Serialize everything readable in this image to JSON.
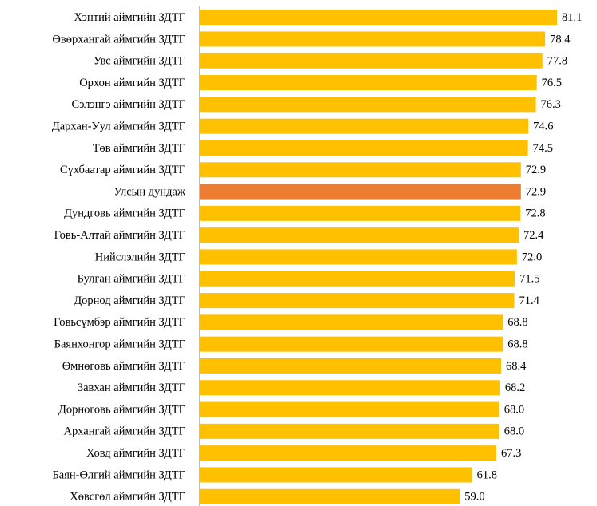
{
  "chart_data": {
    "type": "barh",
    "categories": [
      "Хэнтий аймгийн ЗДТГ",
      "Өвөрхангай аймгийн ЗДТГ",
      "Увс аймгийн ЗДТГ",
      "Орхон аймгийн ЗДТГ",
      "Сэлэнгэ аймгийн ЗДТГ",
      "Дархан-Уул аймгийн ЗДТГ",
      "Төв аймгийн ЗДТГ",
      "Сүхбаатар аймгийн ЗДТГ",
      "Улсын дундаж",
      "Дундговь аймгийн ЗДТГ",
      "Говь-Алтай аймгийн ЗДТГ",
      "Нийслэлийн ЗДТГ",
      "Булган аймгийн ЗДТГ",
      "Дорнод аймгийн ЗДТГ",
      "Говьсүмбэр аймгийн ЗДТГ",
      "Баянхонгор аймгийн ЗДТГ",
      "Өмнөговь аймгийн ЗДТГ",
      "Завхан аймгийн ЗДТГ",
      "Дорноговь аймгийн ЗДТГ",
      "Архангай аймгийн ЗДТГ",
      "Ховд аймгийн ЗДТГ",
      "Баян-Өлгий аймгийн ЗДТГ",
      "Хөвсгөл аймгийн ЗДТГ"
    ],
    "values": [
      81.1,
      78.4,
      77.8,
      76.5,
      76.3,
      74.6,
      74.5,
      72.9,
      72.9,
      72.8,
      72.4,
      72.0,
      71.5,
      71.4,
      68.8,
      68.8,
      68.4,
      68.2,
      68.0,
      68.0,
      67.3,
      61.8,
      59.0
    ],
    "value_labels": [
      "81.1",
      "78.4",
      "77.8",
      "76.5",
      "76.3",
      "74.6",
      "74.5",
      "72.9",
      "72.9",
      "72.8",
      "72.4",
      "72.0",
      "71.5",
      "71.4",
      "68.8",
      "68.8",
      "68.4",
      "68.2",
      "68.0",
      "68.0",
      "67.3",
      "61.8",
      "59.0"
    ],
    "colors": [
      "#FFC000",
      "#FFC000",
      "#FFC000",
      "#FFC000",
      "#FFC000",
      "#FFC000",
      "#FFC000",
      "#FFC000",
      "#ED7D31",
      "#FFC000",
      "#FFC000",
      "#FFC000",
      "#FFC000",
      "#FFC000",
      "#FFC000",
      "#FFC000",
      "#FFC000",
      "#FFC000",
      "#FFC000",
      "#FFC000",
      "#FFC000",
      "#FFC000",
      "#FFC000"
    ]
  }
}
